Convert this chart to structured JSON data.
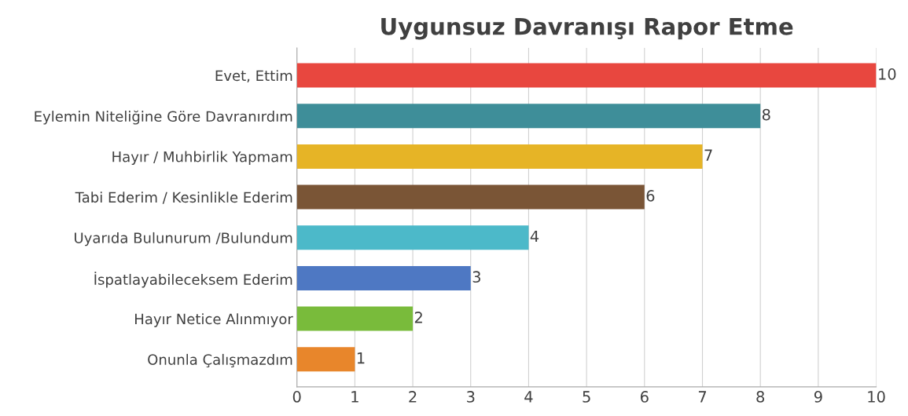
{
  "chart_data": {
    "type": "bar",
    "orientation": "horizontal",
    "title": "Uygunsuz Davranışı Rapor Etme",
    "categories": [
      "Evet, Ettim",
      "Eylemin Niteliğine Göre Davranırdım",
      "Hayır / Muhbirlik Yapmam",
      "Tabi Ederim / Kesinlikle Ederim",
      "Uyarıda Bulunurum /Bulundum",
      "İspatlayabileceksem Ederim",
      "Hayır Netice Alınmıyor",
      "Onunla Çalışmazdım"
    ],
    "values": [
      10,
      8,
      7,
      6,
      4,
      3,
      2,
      1
    ],
    "colors": [
      "#e8473f",
      "#3e8e99",
      "#e6b426",
      "#7a5536",
      "#4cb9c9",
      "#4e78c3",
      "#79bb3b",
      "#e8862b"
    ],
    "xlim": [
      0,
      10
    ],
    "xticks": [
      0,
      1,
      2,
      3,
      4,
      5,
      6,
      7,
      8,
      9,
      10
    ],
    "grid": "x",
    "data_labels": true,
    "legend": false
  }
}
